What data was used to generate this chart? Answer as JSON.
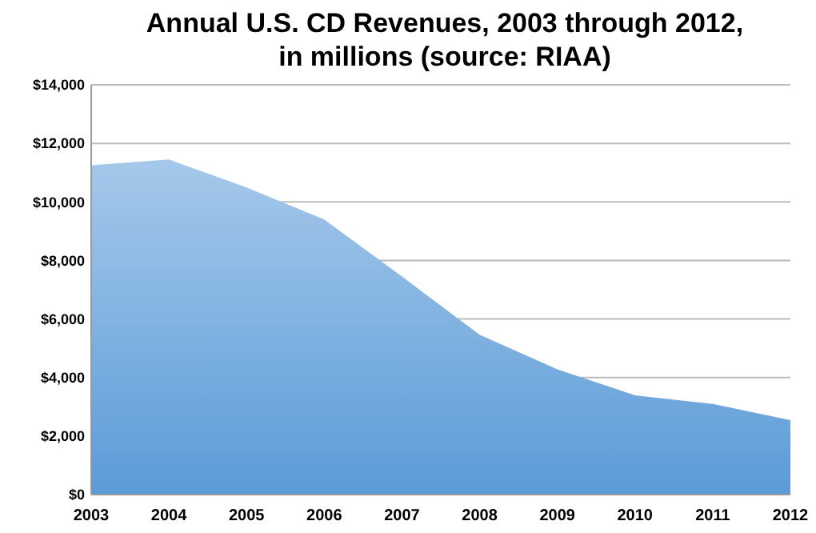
{
  "chart_data": {
    "type": "area",
    "title": "Annual U.S. CD Revenues, 2003 through 2012,\nin millions (source: RIAA)",
    "categories": [
      "2003",
      "2004",
      "2005",
      "2006",
      "2007",
      "2008",
      "2009",
      "2010",
      "2011",
      "2012"
    ],
    "series": [
      {
        "color": "#5b9bd8",
        "values": [
          11250,
          11450,
          10490,
          9400,
          7450,
          5460,
          4280,
          3390,
          3100,
          2540
        ]
      }
    ],
    "ylim": [
      0,
      14000
    ],
    "yticks": [
      {
        "value": 0,
        "label": "$0"
      },
      {
        "value": 2000,
        "label": "$2,000"
      },
      {
        "value": 4000,
        "label": "$4,000"
      },
      {
        "value": 6000,
        "label": "$6,000"
      },
      {
        "value": 8000,
        "label": "$8,000"
      },
      {
        "value": 10000,
        "label": "$10,000"
      },
      {
        "value": 12000,
        "label": "$12,000"
      },
      {
        "value": 14000,
        "label": "$14,000"
      }
    ],
    "grid": "y"
  }
}
